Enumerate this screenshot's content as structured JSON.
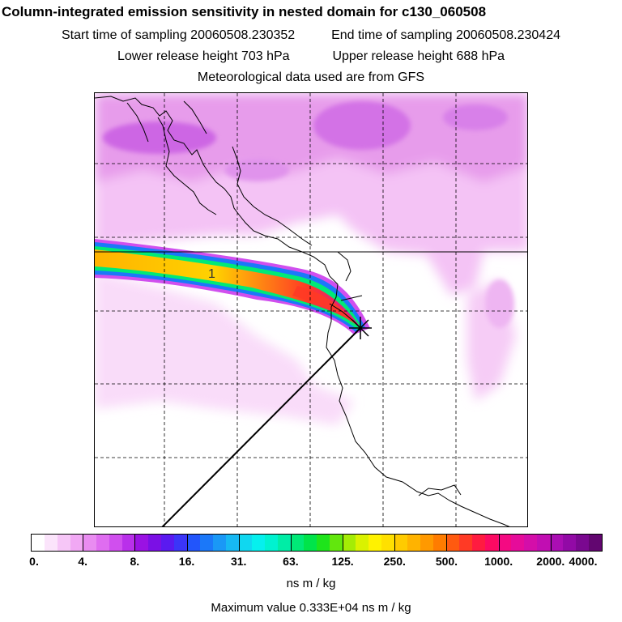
{
  "header": {
    "title": "Column-integrated emission sensitivity in nested domain for c130_060508",
    "start_time": "Start time of sampling 20060508.230352",
    "end_time": "End time of sampling 20060508.230424",
    "lower_height": "Lower release height  703 hPa",
    "upper_height": "Upper release height  688 hPa",
    "met_data": "Meteorological data used are from GFS"
  },
  "map": {
    "plume_label": "1",
    "release_marker": "release-point"
  },
  "colorbar": {
    "tick_labels": [
      "0.",
      "4.",
      "8.",
      "16.",
      "31.",
      "63.",
      "125.",
      "250.",
      "500.",
      "1000.",
      "2000.",
      "4000."
    ],
    "colors": [
      "#ffffff",
      "#fbe4fb",
      "#f6c6f7",
      "#f1a8f4",
      "#e98cf1",
      "#df6df0",
      "#d04fee",
      "#b930ea",
      "#9a12e3",
      "#7b10e5",
      "#5a1af0",
      "#3b35f8",
      "#2255fb",
      "#1b78f9",
      "#1a98f6",
      "#17b8f3",
      "#10d7f0",
      "#06f0ee",
      "#00f2d0",
      "#00eda6",
      "#00e977",
      "#00e44a",
      "#1ee41b",
      "#62e70d",
      "#a4ec05",
      "#daf200",
      "#fff200",
      "#ffe000",
      "#ffcb00",
      "#ffb300",
      "#ff9900",
      "#ff7c00",
      "#ff5a10",
      "#ff3a25",
      "#ff1b40",
      "#fc0a62",
      "#f40a82",
      "#e60c9a",
      "#d40ea9",
      "#c10eb2",
      "#aa0eb3",
      "#920aa6",
      "#7a0890",
      "#620670"
    ],
    "unit": "ns m / kg",
    "max_value": "Maximum value  0.333E+04 ns m / kg"
  }
}
